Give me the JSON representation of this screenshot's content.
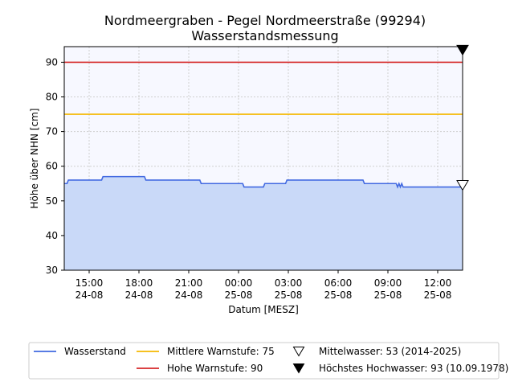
{
  "chart_data": {
    "type": "area",
    "title": "Nordmeergraben - Pegel Nordmeerstraße (99294)",
    "subtitle": "Wasserstandsmessung",
    "xlabel": "Datum [MESZ]",
    "ylabel": "Höhe über NHN [cm]",
    "ylim": [
      30,
      94.5
    ],
    "xlim": [
      "2025-08-24 13:30",
      "2025-08-25 13:30"
    ],
    "grid": true,
    "legend_position": "bottom",
    "x_ticks": [
      {
        "time": "15:00",
        "date": "24-08",
        "at": "2025-08-24 15:00"
      },
      {
        "time": "18:00",
        "date": "24-08",
        "at": "2025-08-24 18:00"
      },
      {
        "time": "21:00",
        "date": "24-08",
        "at": "2025-08-24 21:00"
      },
      {
        "time": "00:00",
        "date": "25-08",
        "at": "2025-08-25 00:00"
      },
      {
        "time": "03:00",
        "date": "25-08",
        "at": "2025-08-25 03:00"
      },
      {
        "time": "06:00",
        "date": "25-08",
        "at": "2025-08-25 06:00"
      },
      {
        "time": "09:00",
        "date": "25-08",
        "at": "2025-08-25 09:00"
      },
      {
        "time": "12:00",
        "date": "25-08",
        "at": "2025-08-25 12:00"
      }
    ],
    "y_ticks": [
      30,
      40,
      50,
      60,
      70,
      80,
      90
    ],
    "series": [
      {
        "name": "Wasserstand",
        "color": "#4169e1",
        "fill": "#c9d9f8",
        "points": [
          [
            "2025-08-24 13:30",
            55
          ],
          [
            "2025-08-24 13:40",
            55
          ],
          [
            "2025-08-24 13:45",
            56
          ],
          [
            "2025-08-24 15:45",
            56
          ],
          [
            "2025-08-24 15:50",
            57
          ],
          [
            "2025-08-24 18:20",
            57
          ],
          [
            "2025-08-24 18:25",
            56
          ],
          [
            "2025-08-24 21:40",
            56
          ],
          [
            "2025-08-24 21:45",
            55
          ],
          [
            "2025-08-25 00:15",
            55
          ],
          [
            "2025-08-25 00:20",
            54
          ],
          [
            "2025-08-25 01:30",
            54
          ],
          [
            "2025-08-25 01:35",
            55
          ],
          [
            "2025-08-25 02:50",
            55
          ],
          [
            "2025-08-25 02:55",
            56
          ],
          [
            "2025-08-25 07:30",
            56
          ],
          [
            "2025-08-25 07:35",
            55
          ],
          [
            "2025-08-25 09:30",
            55
          ],
          [
            "2025-08-25 09:35",
            54
          ],
          [
            "2025-08-25 09:40",
            55
          ],
          [
            "2025-08-25 09:45",
            54
          ],
          [
            "2025-08-25 09:50",
            55
          ],
          [
            "2025-08-25 09:55",
            54
          ],
          [
            "2025-08-25 13:30",
            54
          ]
        ]
      }
    ],
    "reference_lines": [
      {
        "name": "Mittlere Warnstufe: 75",
        "value": 75,
        "color": "#f5b800"
      },
      {
        "name": "Hohe Warnstufe: 90",
        "value": 90,
        "color": "#d62728"
      }
    ],
    "markers": [
      {
        "name": "Mittelwasser: 53 (2014-2025)",
        "value": 54.5,
        "style": "open-triangle-down"
      },
      {
        "name": "Höchstes Hochwasser: 93 (10.09.1978)",
        "value": 93.5,
        "style": "filled-triangle-down"
      }
    ]
  }
}
